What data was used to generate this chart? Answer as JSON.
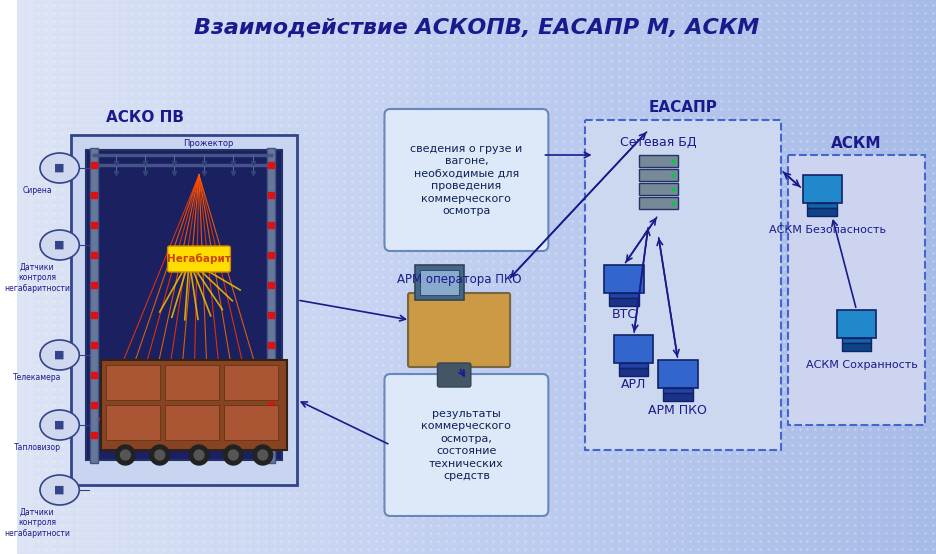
{
  "title": "Взаимодействие АСКОПВ, ЕАСАПР М, АСКМ",
  "title_color": "#1a1a8c",
  "title_fontsize": 16,
  "bg_color_top": "#e8ecf8",
  "bg_color_bottom": "#b0c0e8",
  "asko_label": "АСКО ПВ",
  "easapr_label": "ЕАСАПР",
  "askm_label": "АСКМ",
  "setevaya_bd_label": "Сетевая БД",
  "vtc_label": "ВТС",
  "arl_label": "АРЛ",
  "arm_pko_label": "АРМ ПКО",
  "arm_operator_label": "АРМ оператора ПКО",
  "askm_bezopasnost_label": "АСКМ Безопасность",
  "askm_sohrannost_label": "АСКМ Сохранность",
  "bubble1_text": "сведения о грузе и\nвагоне,\nнеобходимые для\nпроведения\nкоммерческого\nосмотра",
  "bubble2_text": "результаты\nкоммерческого\nосмотра,\nсостояние\nтехнических\nсредств",
  "negabarit_text": "Негабарит",
  "text_color_dark": "#1a1a8c",
  "text_color_blue": "#2244aa",
  "arrow_color": "#1a1a8c",
  "dashed_box_color": "#4466cc",
  "bubble_bg": "#d0dcf0",
  "bubble_border": "#6688cc"
}
